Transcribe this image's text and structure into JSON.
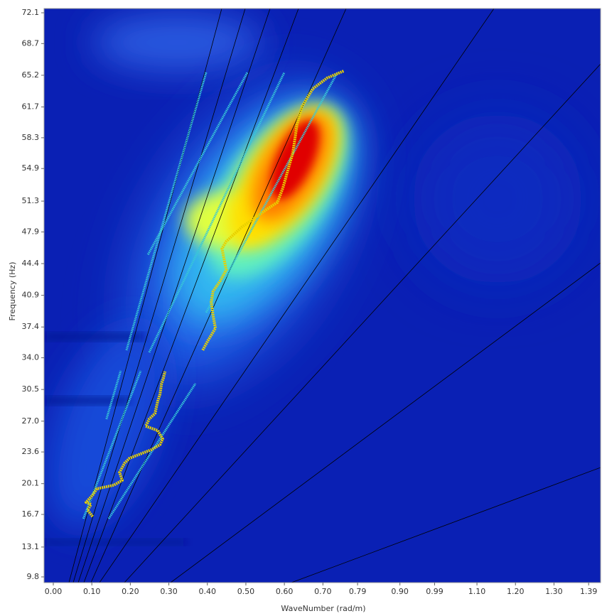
{
  "chart_data": {
    "type": "line",
    "xlabel": "WaveNumber (rad/m)",
    "ylabel": "Frequency (Hz)",
    "xlim": [
      -0.024,
      1.421
    ],
    "ylim": [
      9.17,
      72.57
    ],
    "xticks": [
      {
        "value": 0,
        "label": "0.00"
      },
      {
        "value": 0.1,
        "label": "0.10"
      },
      {
        "value": 0.2,
        "label": "0.20"
      },
      {
        "value": 0.3,
        "label": "0.30"
      },
      {
        "value": 0.4,
        "label": "0.40"
      },
      {
        "value": 0.5,
        "label": "0.50"
      },
      {
        "value": 0.6,
        "label": "0.60"
      },
      {
        "value": 0.7,
        "label": "0.70"
      },
      {
        "value": 0.79,
        "label": "0.79"
      },
      {
        "value": 0.9,
        "label": "0.90"
      },
      {
        "value": 0.99,
        "label": "0.99"
      },
      {
        "value": 1.1,
        "label": "1.10"
      },
      {
        "value": 1.2,
        "label": "1.20"
      },
      {
        "value": 1.3,
        "label": "1.30"
      },
      {
        "value": 1.39,
        "label": "1.39"
      }
    ],
    "yticks": [
      9.8,
      13.1,
      16.7,
      20.1,
      23.6,
      {
        "value": 27,
        "label": "27.0"
      },
      30.5,
      {
        "value": 34,
        "label": "34.0"
      },
      37.4,
      40.9,
      44.4,
      47.9,
      51.3,
      54.9,
      58.3,
      61.7,
      65.2,
      68.7,
      72.1
    ],
    "series": [
      {
        "color": "#38c8d8",
        "x": [
          0.138,
          0.175
        ],
        "values": [
          27.23,
          32.56
        ]
      },
      {
        "color": "#38c8d8",
        "x": [
          0.19,
          0.397
        ],
        "values": [
          34.84,
          65.53
        ]
      },
      {
        "color": "#38c8d8",
        "x": [
          0.246,
          0.504
        ],
        "values": [
          45.4,
          65.53
        ]
      },
      {
        "color": "#38c8d8",
        "x": [
          0.078,
          0.227
        ],
        "values": [
          16.24,
          32.56
        ]
      },
      {
        "color": "#38c8d8",
        "x": [
          0.144,
          0.369
        ],
        "values": [
          16.24,
          31.15
        ]
      },
      {
        "color": "#38c8d8",
        "x": [
          0.249,
          0.6
        ],
        "values": [
          34.6,
          65.53
        ]
      },
      {
        "color": "#38c8d8",
        "x": [
          0.397,
          0.738
        ],
        "values": [
          39.0,
          65.53
        ]
      },
      {
        "color": "#e8d000",
        "x": [
          0.102,
          0.089,
          0.098,
          0.085,
          0.102,
          0.113,
          0.157,
          0.179,
          0.172,
          0.185,
          0.198,
          0.231,
          0.255,
          0.277,
          0.284,
          0.271,
          0.24,
          0.249,
          0.264,
          0.271,
          0.277,
          0.281,
          0.286,
          0.29
        ],
        "values": [
          16.47,
          17.18,
          17.81,
          18.04,
          18.83,
          19.53,
          19.93,
          20.47,
          21.34,
          22.36,
          22.91,
          23.46,
          23.85,
          24.4,
          25.03,
          25.97,
          26.44,
          27.23,
          27.85,
          29.19,
          29.97,
          31.15,
          31.78,
          32.48
        ]
      },
      {
        "color": "#e8d000",
        "x": [
          0.388,
          0.401,
          0.421,
          0.415,
          0.41,
          0.415,
          0.434,
          0.449,
          0.438,
          0.449,
          0.489,
          0.554,
          0.582,
          0.596,
          0.609,
          0.622,
          0.633,
          0.646,
          0.674,
          0.711,
          0.755
        ],
        "values": [
          34.84,
          35.86,
          37.27,
          38.61,
          40.18,
          41.35,
          42.53,
          43.71,
          46.06,
          46.85,
          48.42,
          50.38,
          51.17,
          52.74,
          54.7,
          56.66,
          59.8,
          61.76,
          63.72,
          64.9,
          65.69
        ]
      }
    ]
  }
}
